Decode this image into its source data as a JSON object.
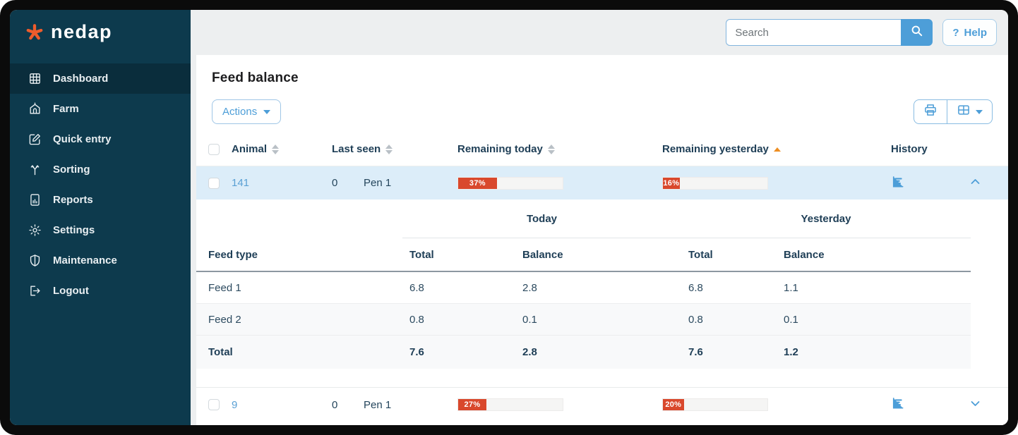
{
  "app": {
    "logo_text": "nedap"
  },
  "sidebar": {
    "items": [
      {
        "label": "Dashboard",
        "icon": "grid-icon",
        "active": true
      },
      {
        "label": "Farm",
        "icon": "barn-icon",
        "active": false
      },
      {
        "label": "Quick entry",
        "icon": "edit-icon",
        "active": false
      },
      {
        "label": "Sorting",
        "icon": "sort-branch-icon",
        "active": false
      },
      {
        "label": "Reports",
        "icon": "report-icon",
        "active": false
      },
      {
        "label": "Settings",
        "icon": "gear-icon",
        "active": false
      },
      {
        "label": "Maintenance",
        "icon": "shield-icon",
        "active": false
      },
      {
        "label": "Logout",
        "icon": "logout-icon",
        "active": false
      }
    ]
  },
  "topbar": {
    "search_placeholder": "Search",
    "help_label": "Help",
    "help_glyph": "?"
  },
  "main": {
    "title": "Feed balance",
    "actions_label": "Actions",
    "table": {
      "headers": {
        "animal": "Animal",
        "last_seen": "Last seen",
        "remaining_today": "Remaining today",
        "remaining_yesterday": "Remaining yesterday",
        "history": "History"
      },
      "sort": {
        "column": "remaining_yesterday",
        "direction": "asc"
      },
      "rows": [
        {
          "animal": "141",
          "last_seen_count": "0",
          "pen": "Pen 1",
          "remaining_today_pct": 37,
          "remaining_today_label": "37%",
          "remaining_yesterday_pct": 16,
          "remaining_yesterday_label": "16%",
          "expanded": true
        },
        {
          "animal": "9",
          "last_seen_count": "0",
          "pen": "Pen 1",
          "remaining_today_pct": 27,
          "remaining_today_label": "27%",
          "remaining_yesterday_pct": 20,
          "remaining_yesterday_label": "20%",
          "expanded": false
        }
      ]
    },
    "detail": {
      "group_headers": {
        "today": "Today",
        "yesterday": "Yesterday"
      },
      "col_headers": {
        "feed_type": "Feed type",
        "total": "Total",
        "balance": "Balance"
      },
      "rows": [
        {
          "feed_type": "Feed 1",
          "today_total": "6.8",
          "today_balance": "2.8",
          "yesterday_total": "6.8",
          "yesterday_balance": "1.1"
        },
        {
          "feed_type": "Feed 2",
          "today_total": "0.8",
          "today_balance": "0.1",
          "yesterday_total": "0.8",
          "yesterday_balance": "0.1"
        }
      ],
      "total_row": {
        "feed_type": "Total",
        "today_total": "7.6",
        "today_balance": "2.8",
        "yesterday_total": "7.6",
        "yesterday_balance": "1.2"
      }
    }
  },
  "colors": {
    "sidebar_bg": "#0d3a4d",
    "sidebar_active_bg": "#0a2d3c",
    "accent_blue": "#4d9ed8",
    "bar_fill": "#d9482c",
    "sort_active_orange": "#ee8e21",
    "selected_row_bg": "#dcedf9",
    "logo_star_orange": "#ee5c2c"
  }
}
